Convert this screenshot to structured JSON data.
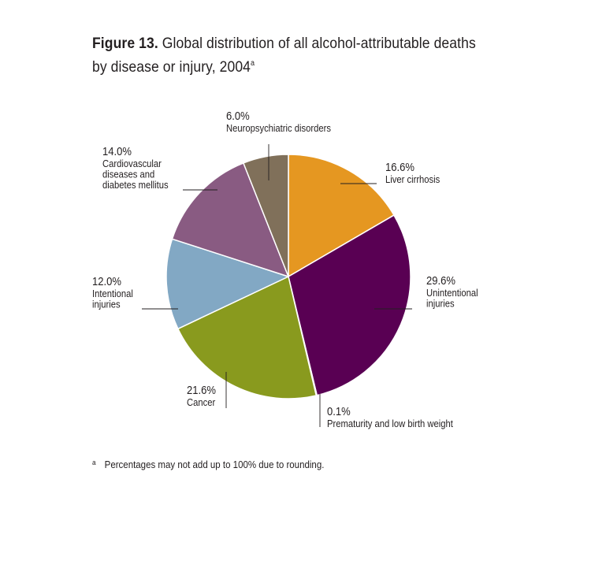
{
  "title": {
    "figure_label": "Figure 13.",
    "text": "Global distribution of all alcohol-attributable deaths by disease or injury, 2004",
    "superscript": "a"
  },
  "chart_data": {
    "type": "pie",
    "title": "Figure 13. Global distribution of all alcohol-attributable deaths by disease or injury, 2004",
    "slices": [
      {
        "name": "Liver cirrhosis",
        "label_lines": [
          "Liver cirrhosis"
        ],
        "value": 16.6,
        "percent_label": "16.6%",
        "color": "#e59721"
      },
      {
        "name": "Unintentional injuries",
        "label_lines": [
          "Unintentional",
          "injuries"
        ],
        "value": 29.6,
        "percent_label": "29.6%",
        "color": "#590053"
      },
      {
        "name": "Prematurity and low birth weight",
        "label_lines": [
          "Prematurity and low birth weight"
        ],
        "value": 0.1,
        "percent_label": "0.1%",
        "color": "#a9a9a9"
      },
      {
        "name": "Cancer",
        "label_lines": [
          "Cancer"
        ],
        "value": 21.6,
        "percent_label": "21.6%",
        "color": "#899a1e"
      },
      {
        "name": "Intentional injuries",
        "label_lines": [
          "Intentional",
          "injuries"
        ],
        "value": 12.0,
        "percent_label": "12.0%",
        "color": "#82a8c4"
      },
      {
        "name": "Cardiovascular diseases and diabetes mellitus",
        "label_lines": [
          "Cardiovascular",
          "diseases and",
          "diabetes mellitus"
        ],
        "value": 14.0,
        "percent_label": "14.0%",
        "color": "#895b82"
      },
      {
        "name": "Neuropsychiatric disorders",
        "label_lines": [
          "Neuropsychiatric disorders"
        ],
        "value": 6.0,
        "percent_label": "6.0%",
        "color": "#80705a"
      }
    ]
  },
  "footnote": {
    "marker": "a",
    "text": "Percentages may not add up to 100% due to rounding."
  }
}
